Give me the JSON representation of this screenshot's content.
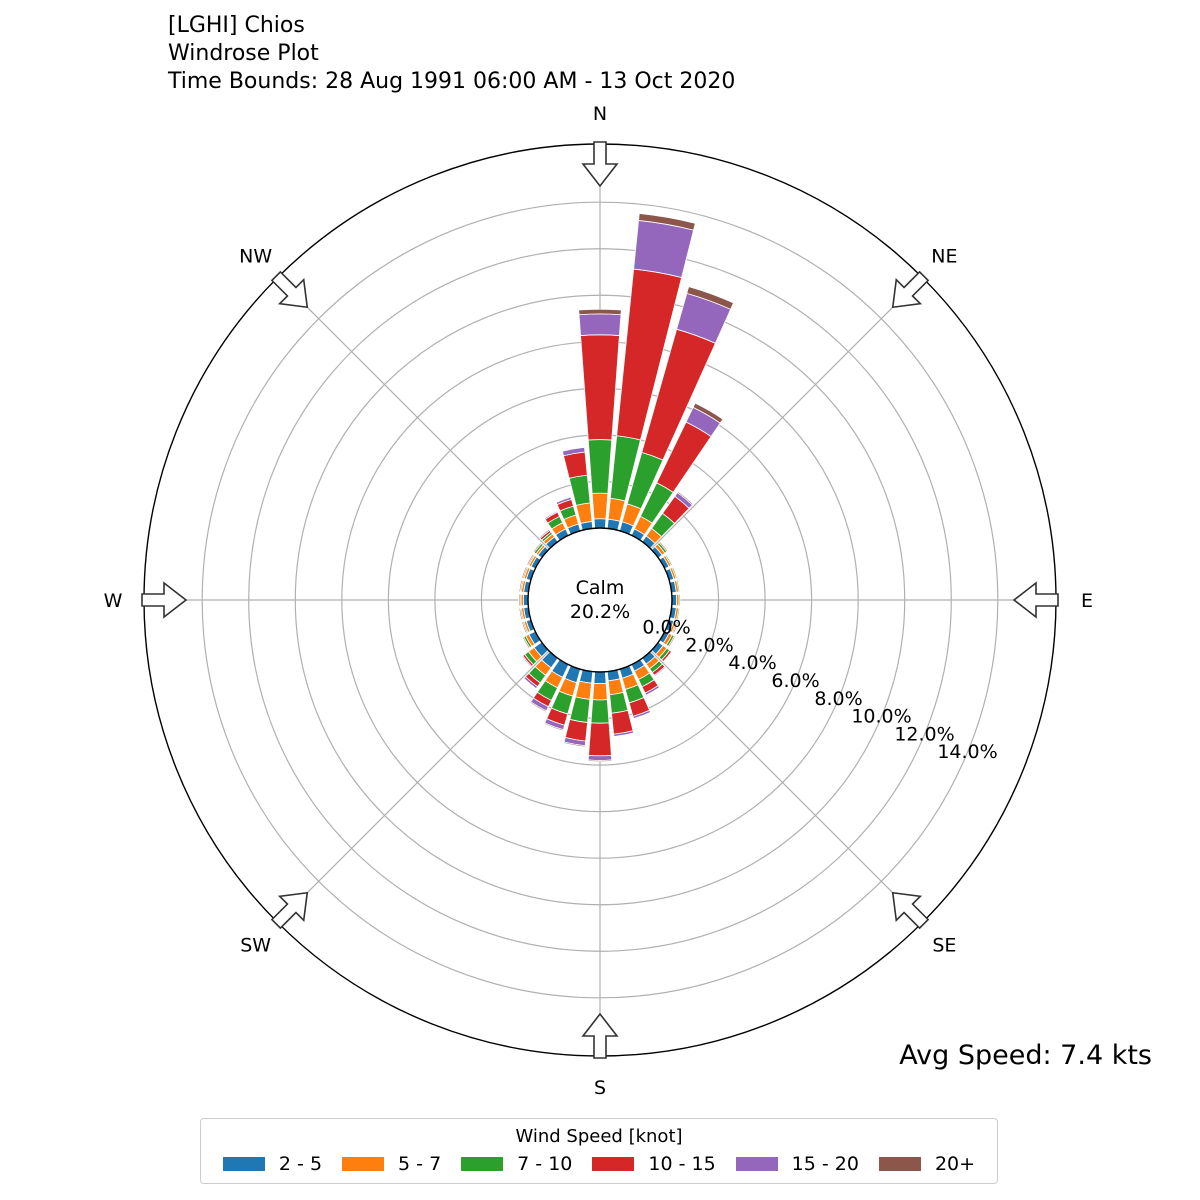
{
  "title": {
    "station": "[LGHI] Chios",
    "plot_name": "Windrose Plot",
    "time_bounds": "Time Bounds: 28 Aug 1991 06:00 AM - 13 Oct 2020"
  },
  "calm": {
    "label": "Calm",
    "value": "20.2%"
  },
  "avg_speed": "Avg Speed: 7.4 kts",
  "legend": {
    "title": "Wind Speed [knot]",
    "location": "bottom-center"
  },
  "chart_data": {
    "type": "windrose",
    "radial_unit": "%",
    "radial_ticks": [
      "0.0%",
      "2.0%",
      "4.0%",
      "6.0%",
      "8.0%",
      "10.0%",
      "12.0%",
      "14.0%"
    ],
    "rmax": 16.5,
    "direction_labels": [
      "N",
      "NE",
      "E",
      "SE",
      "S",
      "SW",
      "W",
      "NW"
    ],
    "bins": [
      {
        "name": "2 - 5",
        "color": "#1f77b4"
      },
      {
        "name": "5 - 7",
        "color": "#ff7f0e"
      },
      {
        "name": "7 - 10",
        "color": "#2ca02c"
      },
      {
        "name": "10 - 15",
        "color": "#d62728"
      },
      {
        "name": "15 - 20",
        "color": "#9467bd"
      },
      {
        "name": "20+",
        "color": "#8c564b"
      }
    ],
    "sector_width_deg": 10,
    "sectors": [
      {
        "dir": 0,
        "values": [
          0.4,
          1.1,
          2.3,
          4.5,
          0.9,
          0.2
        ]
      },
      {
        "dir": 10,
        "values": [
          0.4,
          0.9,
          2.7,
          7.2,
          2.1,
          0.3
        ]
      },
      {
        "dir": 20,
        "values": [
          0.4,
          0.8,
          2.3,
          5.5,
          1.6,
          0.3
        ]
      },
      {
        "dir": 30,
        "values": [
          0.3,
          0.6,
          1.6,
          2.9,
          0.7,
          0.2
        ]
      },
      {
        "dir": 40,
        "values": [
          0.3,
          0.4,
          0.8,
          0.9,
          0.2,
          0.05
        ]
      },
      {
        "dir": 50,
        "values": [
          0.2,
          0.15,
          0.1,
          0.05,
          0,
          0
        ]
      },
      {
        "dir": 60,
        "values": [
          0.2,
          0.1,
          0.05,
          0,
          0,
          0
        ]
      },
      {
        "dir": 70,
        "values": [
          0.2,
          0.1,
          0.05,
          0,
          0,
          0
        ]
      },
      {
        "dir": 80,
        "values": [
          0.2,
          0.1,
          0.05,
          0,
          0,
          0
        ]
      },
      {
        "dir": 90,
        "values": [
          0.2,
          0.1,
          0.05,
          0,
          0,
          0
        ]
      },
      {
        "dir": 100,
        "values": [
          0.2,
          0.1,
          0.05,
          0,
          0,
          0
        ]
      },
      {
        "dir": 110,
        "values": [
          0.2,
          0.1,
          0.05,
          0.05,
          0,
          0
        ]
      },
      {
        "dir": 120,
        "values": [
          0.2,
          0.15,
          0.1,
          0.05,
          0,
          0
        ]
      },
      {
        "dir": 130,
        "values": [
          0.25,
          0.2,
          0.15,
          0.1,
          0,
          0
        ]
      },
      {
        "dir": 140,
        "values": [
          0.3,
          0.25,
          0.2,
          0.15,
          0.05,
          0
        ]
      },
      {
        "dir": 150,
        "values": [
          0.3,
          0.4,
          0.35,
          0.3,
          0.1,
          0
        ]
      },
      {
        "dir": 160,
        "values": [
          0.4,
          0.5,
          0.6,
          0.6,
          0.1,
          0
        ]
      },
      {
        "dir": 170,
        "values": [
          0.4,
          0.6,
          0.8,
          0.9,
          0.1,
          0
        ]
      },
      {
        "dir": 180,
        "values": [
          0.5,
          0.7,
          1.0,
          1.4,
          0.2,
          0.05
        ]
      },
      {
        "dir": 190,
        "values": [
          0.5,
          0.7,
          1.0,
          0.8,
          0.2,
          0.05
        ]
      },
      {
        "dir": 200,
        "values": [
          0.6,
          0.6,
          0.8,
          0.5,
          0.2,
          0.05
        ]
      },
      {
        "dir": 210,
        "values": [
          0.6,
          0.5,
          0.6,
          0.3,
          0.2,
          0.05
        ]
      },
      {
        "dir": 220,
        "values": [
          0.5,
          0.4,
          0.4,
          0.2,
          0.1,
          0
        ]
      },
      {
        "dir": 230,
        "values": [
          0.4,
          0.3,
          0.2,
          0.1,
          0.05,
          0
        ]
      },
      {
        "dir": 240,
        "values": [
          0.3,
          0.15,
          0.1,
          0.05,
          0,
          0
        ]
      },
      {
        "dir": 250,
        "values": [
          0.2,
          0.1,
          0.05,
          0.05,
          0,
          0
        ]
      },
      {
        "dir": 260,
        "values": [
          0.2,
          0.1,
          0.05,
          0.05,
          0,
          0
        ]
      },
      {
        "dir": 270,
        "values": [
          0.2,
          0.1,
          0.05,
          0.05,
          0,
          0
        ]
      },
      {
        "dir": 280,
        "values": [
          0.2,
          0.1,
          0.05,
          0.05,
          0,
          0
        ]
      },
      {
        "dir": 290,
        "values": [
          0.2,
          0.1,
          0.05,
          0.05,
          0,
          0
        ]
      },
      {
        "dir": 300,
        "values": [
          0.2,
          0.1,
          0.05,
          0.05,
          0,
          0
        ]
      },
      {
        "dir": 310,
        "values": [
          0.2,
          0.1,
          0.1,
          0.05,
          0,
          0
        ]
      },
      {
        "dir": 320,
        "values": [
          0.25,
          0.15,
          0.1,
          0.1,
          0.05,
          0
        ]
      },
      {
        "dir": 330,
        "values": [
          0.3,
          0.3,
          0.3,
          0.2,
          0.05,
          0
        ]
      },
      {
        "dir": 340,
        "values": [
          0.3,
          0.4,
          0.4,
          0.3,
          0.1,
          0
        ]
      },
      {
        "dir": 350,
        "values": [
          0.3,
          0.8,
          1.2,
          1.0,
          0.2,
          0
        ]
      }
    ]
  }
}
